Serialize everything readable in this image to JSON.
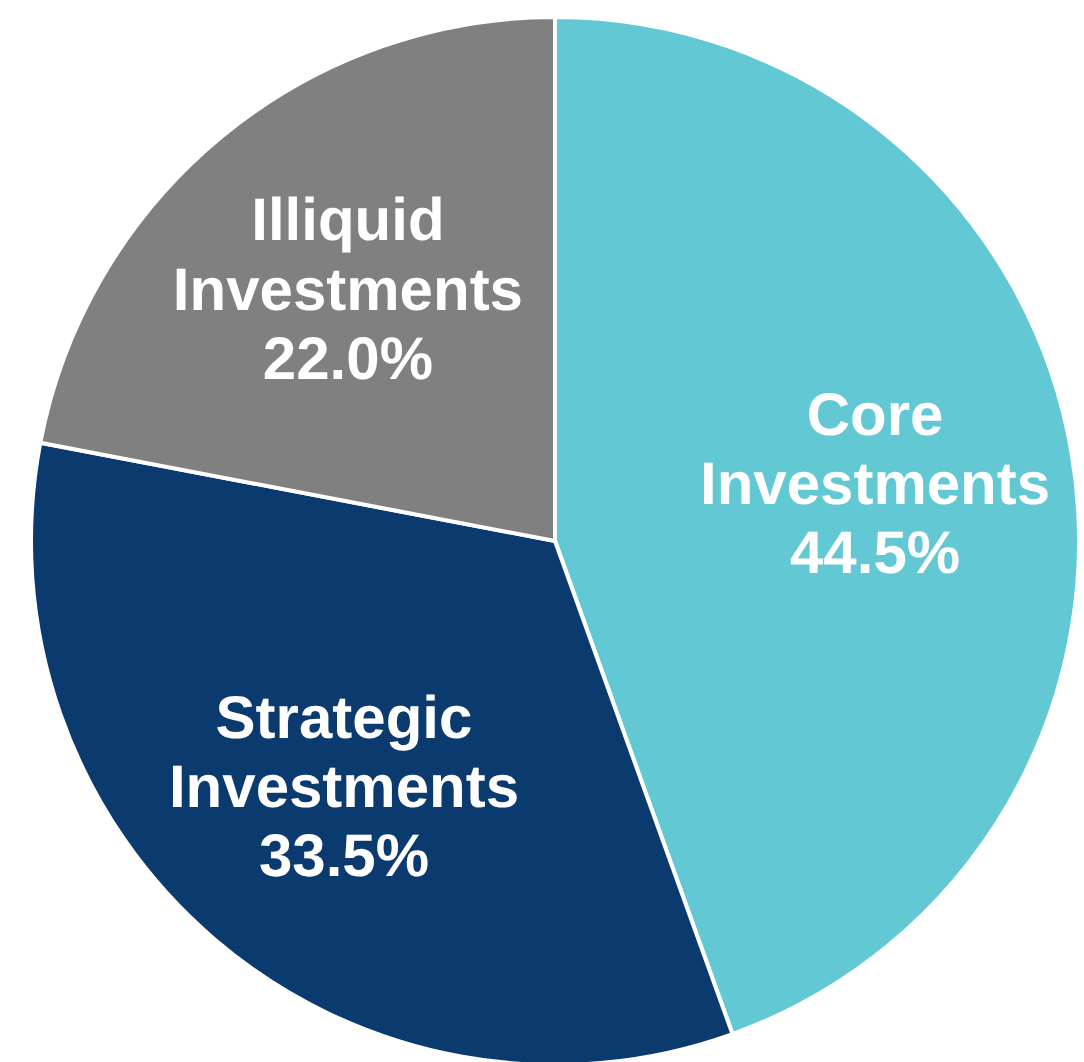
{
  "chart_data": {
    "type": "pie",
    "categories": [
      "Core Investments",
      "Strategic Investments",
      "Illiquid Investments"
    ],
    "values": [
      44.5,
      33.5,
      22.0
    ],
    "value_labels": [
      "44.5%",
      "33.5%",
      "22.0%"
    ],
    "colors": [
      "#62c8d4",
      "#0a3a6e",
      "#808080"
    ]
  }
}
